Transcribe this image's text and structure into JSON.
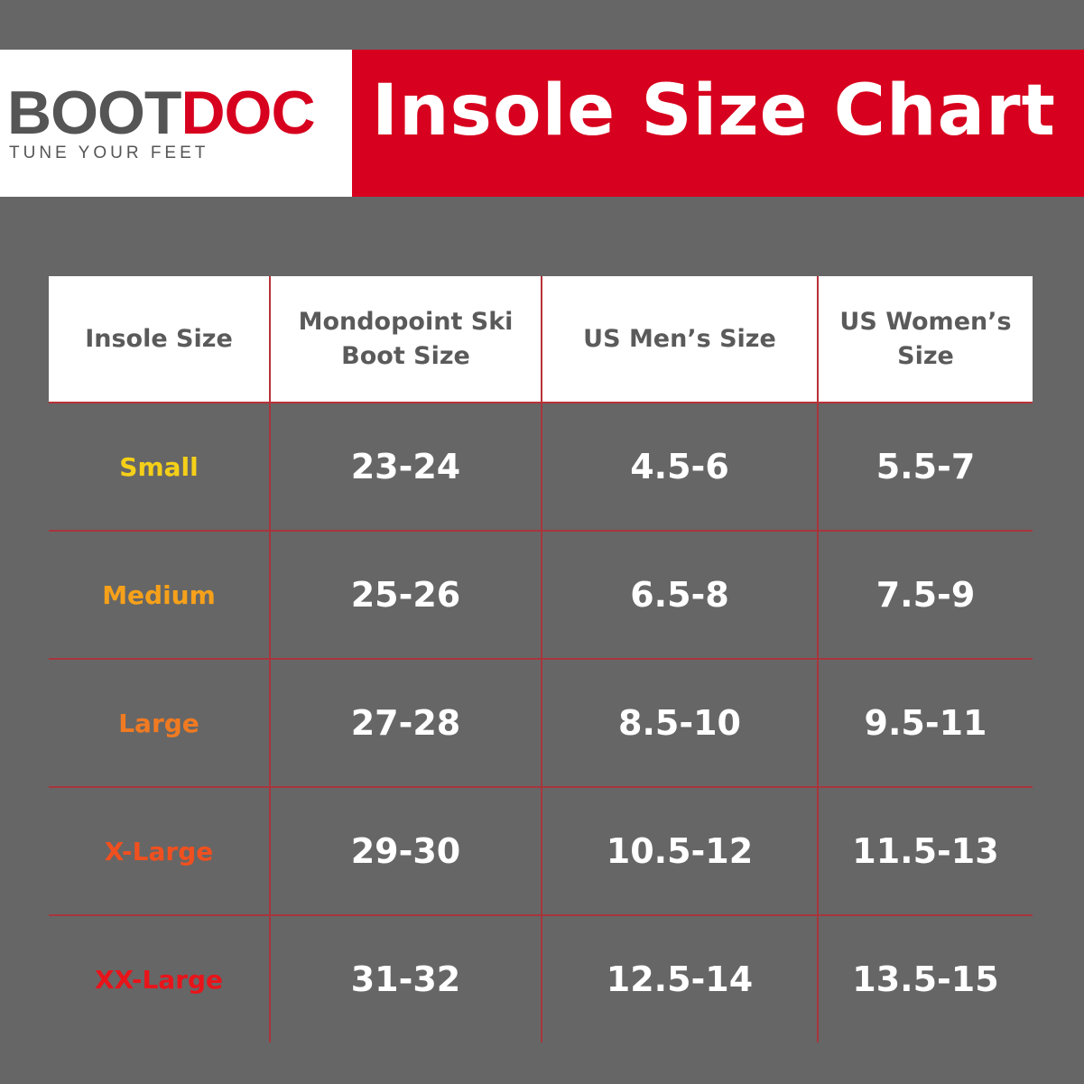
{
  "brand": {
    "logo_text_grey": "BOOT",
    "logo_text_red": "DOC",
    "tagline": "TUNE YOUR FEET",
    "logo_red": "#d7001e",
    "logo_grey": "#555555"
  },
  "title": "Insole Size Chart",
  "colors": {
    "background": "#666666",
    "title_banner": "#d7001e",
    "grid_lines": "#a8353c"
  },
  "table": {
    "headers": [
      "Insole Size",
      "Mondopoint Ski Boot Size",
      "US Men’s Size",
      "US Women’s Size"
    ],
    "rows": [
      {
        "size": "Small",
        "color": "#f5d018",
        "mondopoint": "23-24",
        "us_men": "4.5-6",
        "us_women": "5.5-7"
      },
      {
        "size": "Medium",
        "color": "#f7a11a",
        "mondopoint": "25-26",
        "us_men": "6.5-8",
        "us_women": "7.5-9"
      },
      {
        "size": "Large",
        "color": "#f07a22",
        "mondopoint": "27-28",
        "us_men": "8.5-10",
        "us_women": "9.5-11"
      },
      {
        "size": "X-Large",
        "color": "#f0501f",
        "mondopoint": "29-30",
        "us_men": "10.5-12",
        "us_women": "11.5-13"
      },
      {
        "size": "XX-Large",
        "color": "#e8141a",
        "mondopoint": "31-32",
        "us_men": "12.5-14",
        "us_women": "13.5-15"
      }
    ]
  }
}
